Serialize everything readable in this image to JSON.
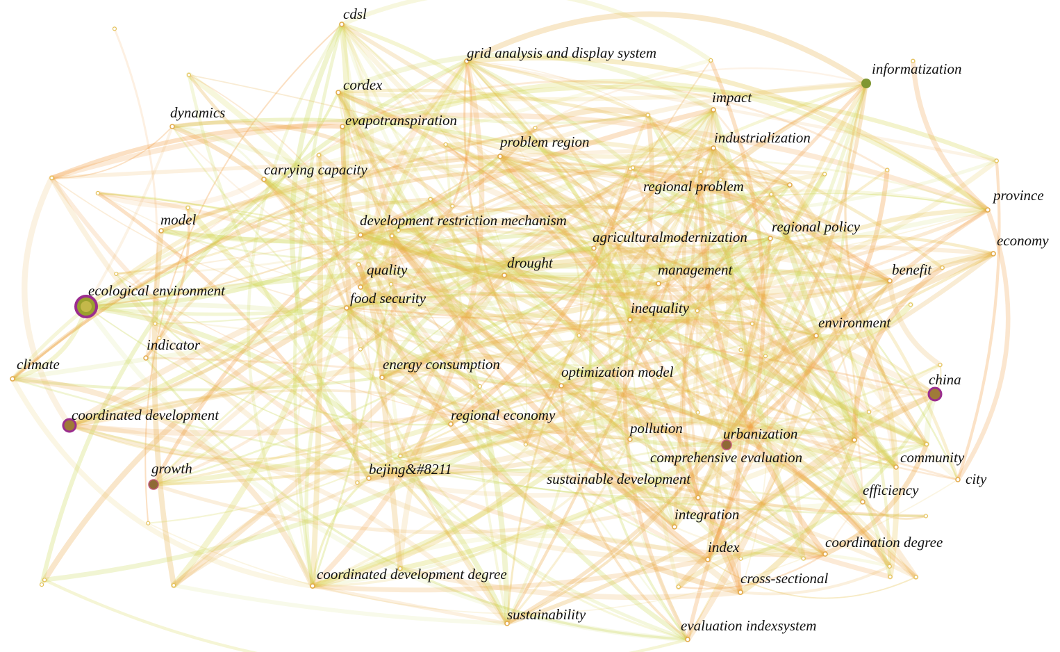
{
  "nodes": [
    {
      "label": "cdsl"
    },
    {
      "label": "grid analysis and display system"
    },
    {
      "label": "cordex"
    },
    {
      "label": "informatization"
    },
    {
      "label": "impact"
    },
    {
      "label": "dynamics"
    },
    {
      "label": "evapotranspiration"
    },
    {
      "label": "industrialization"
    },
    {
      "label": "problem region"
    },
    {
      "label": "carrying capacity"
    },
    {
      "label": "regional problem"
    },
    {
      "label": "province"
    },
    {
      "label": "model"
    },
    {
      "label": "development restriction mechanism"
    },
    {
      "label": "regional policy"
    },
    {
      "label": "agriculturalmodernization"
    },
    {
      "label": "economy"
    },
    {
      "label": "drought"
    },
    {
      "label": "quality"
    },
    {
      "label": "management"
    },
    {
      "label": "benefit"
    },
    {
      "label": "ecological environment"
    },
    {
      "label": "food security"
    },
    {
      "label": "inequality"
    },
    {
      "label": "environment"
    },
    {
      "label": "indicator"
    },
    {
      "label": "climate"
    },
    {
      "label": "energy consumption"
    },
    {
      "label": "optimization model"
    },
    {
      "label": "china"
    },
    {
      "label": "coordinated development"
    },
    {
      "label": "regional economy"
    },
    {
      "label": "pollution"
    },
    {
      "label": "urbanization"
    },
    {
      "label": "comprehensive evaluation"
    },
    {
      "label": "community"
    },
    {
      "label": "growth"
    },
    {
      "label": "bejing&#8211"
    },
    {
      "label": "city"
    },
    {
      "label": "sustainable development"
    },
    {
      "label": "efficiency"
    },
    {
      "label": "integration"
    },
    {
      "label": "index"
    },
    {
      "label": "coordination degree"
    },
    {
      "label": "coordinated development degree"
    },
    {
      "label": "cross-sectional"
    },
    {
      "label": "sustainability"
    },
    {
      "label": "evaluation indexsystem"
    }
  ]
}
